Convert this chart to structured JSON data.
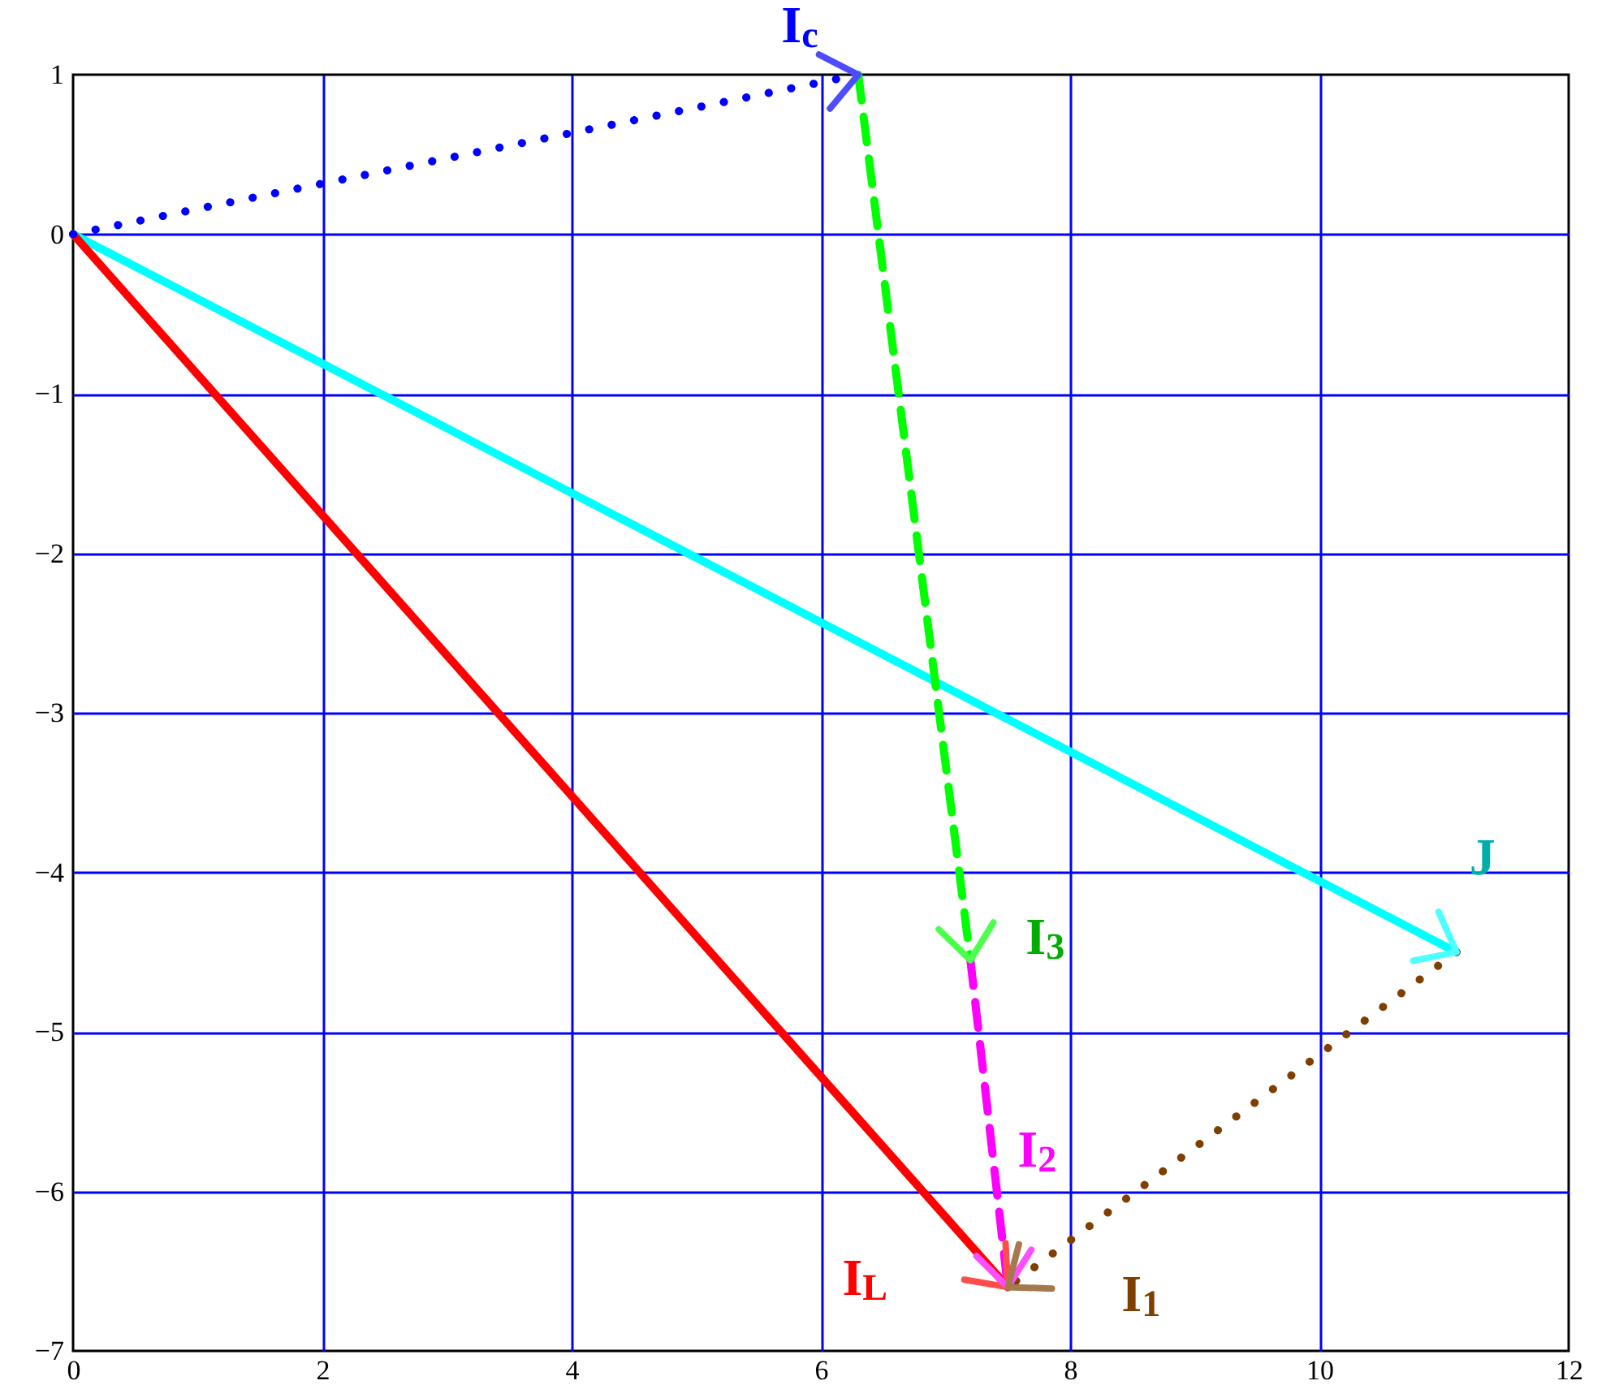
{
  "chart_data": {
    "type": "line",
    "xlim": [
      0,
      12
    ],
    "ylim": [
      -7,
      1
    ],
    "xticks": [
      0,
      2,
      4,
      6,
      8,
      10,
      12
    ],
    "yticks": [
      -7,
      -6,
      -5,
      -4,
      -3,
      -2,
      -1,
      0,
      1
    ],
    "grid": true,
    "series": [
      {
        "name": "J",
        "color": "#00ffff",
        "line_style": "solid",
        "x": [
          0,
          11.1
        ],
        "values": [
          0,
          -4.5
        ]
      },
      {
        "name": "I$_{L}$",
        "color": "#ff0000",
        "line_style": "solid",
        "x": [
          0,
          7.5
        ],
        "values": [
          0,
          -6.6
        ]
      },
      {
        "name": "I$_{c}$",
        "color": "#0000ff",
        "line_style": "dotted",
        "x": [
          0,
          6.3
        ],
        "values": [
          0,
          1
        ]
      },
      {
        "name": "I$_{3}$",
        "color": "#00ff00",
        "line_style": "dashed",
        "x": [
          6.3,
          7.2
        ],
        "values": [
          1,
          -4.55
        ]
      },
      {
        "name": "I$_{2}$",
        "color": "#ff00ff",
        "line_style": "dashed",
        "x": [
          7.2,
          7.5
        ],
        "values": [
          -4.55,
          -6.6
        ]
      },
      {
        "name": "I$_{1}$",
        "color": "#7f3f00",
        "line_style": "dotted",
        "x": [
          11.1,
          7.5
        ],
        "values": [
          -4.5,
          -6.6
        ]
      }
    ]
  }
}
